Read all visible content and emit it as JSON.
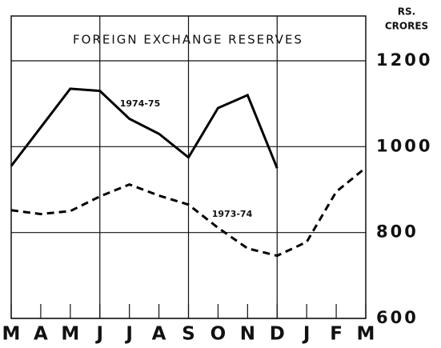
{
  "chart_data": {
    "type": "line",
    "title": "FOREIGN EXCHANGE RESERVES",
    "y_label": [
      "RS.",
      "CRORES"
    ],
    "categories": [
      "M",
      "A",
      "M",
      "J",
      "J",
      "A",
      "S",
      "O",
      "N",
      "D",
      "J",
      "F",
      "M"
    ],
    "series": [
      {
        "name": "1974-75",
        "color": "#000000",
        "style": "solid",
        "values": [
          955,
          1045,
          1135,
          1130,
          1065,
          1030,
          975,
          1090,
          1120,
          950,
          null,
          null,
          null
        ]
      },
      {
        "name": "1973-74",
        "color": "#000000",
        "style": "dashed",
        "values": [
          852,
          843,
          850,
          884,
          912,
          886,
          865,
          811,
          763,
          746,
          778,
          895,
          951
        ]
      }
    ],
    "ylim": [
      600,
      1200
    ],
    "yticks": [
      600,
      800,
      1000,
      1200
    ],
    "grid": true
  }
}
